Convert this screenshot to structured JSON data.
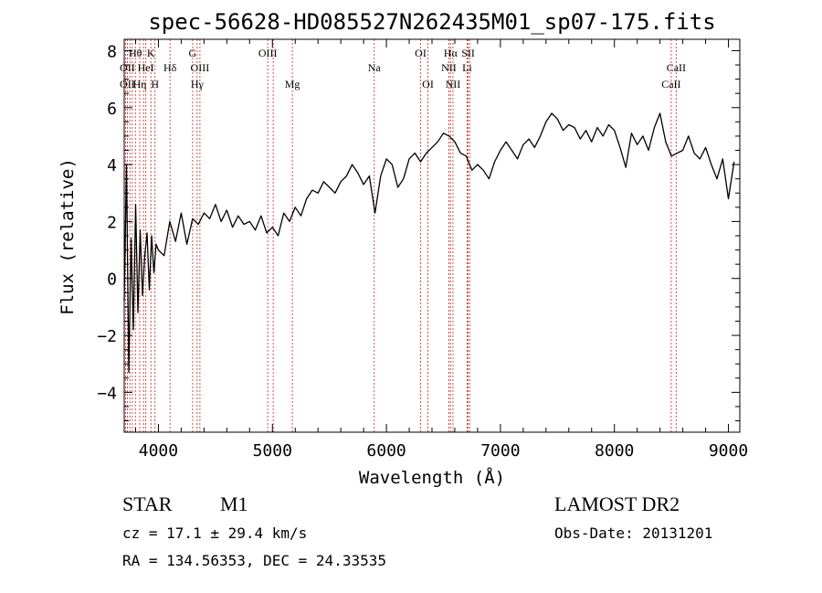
{
  "chart_data": {
    "type": "line",
    "title": "spec-56628-HD085527N262435M01_sp07-175.fits",
    "xlabel": "Wavelength (Å)",
    "ylabel": "Flux (relative)",
    "xlim": [
      3700,
      9100
    ],
    "ylim": [
      -5.4,
      8.4
    ],
    "x_ticks": [
      4000,
      5000,
      6000,
      7000,
      8000,
      9000
    ],
    "x_tick_labels": [
      "4000",
      "5000",
      "6000",
      "7000",
      "8000",
      "9000"
    ],
    "y_ticks": [
      -4,
      -2,
      0,
      2,
      4,
      6,
      8
    ],
    "y_tick_labels": [
      "−4",
      "−2",
      "0",
      "2",
      "4",
      "6",
      "8"
    ],
    "grid": false,
    "series": [
      {
        "line_color": "#000000",
        "x": [
          3700,
          3720,
          3740,
          3760,
          3780,
          3800,
          3820,
          3840,
          3860,
          3880,
          3900,
          3920,
          3940,
          3960,
          3980,
          4000,
          4050,
          4100,
          4150,
          4200,
          4250,
          4300,
          4350,
          4400,
          4450,
          4500,
          4550,
          4600,
          4650,
          4700,
          4750,
          4800,
          4850,
          4900,
          4950,
          5000,
          5050,
          5100,
          5150,
          5200,
          5250,
          5300,
          5350,
          5400,
          5450,
          5500,
          5550,
          5600,
          5650,
          5700,
          5750,
          5800,
          5850,
          5900,
          5950,
          6000,
          6050,
          6100,
          6150,
          6200,
          6250,
          6300,
          6350,
          6400,
          6450,
          6500,
          6550,
          6600,
          6650,
          6700,
          6750,
          6800,
          6850,
          6900,
          6950,
          7000,
          7050,
          7100,
          7150,
          7200,
          7250,
          7300,
          7350,
          7400,
          7450,
          7500,
          7550,
          7600,
          7650,
          7700,
          7750,
          7800,
          7850,
          7900,
          7950,
          8000,
          8050,
          8100,
          8150,
          8200,
          8250,
          8300,
          8350,
          8400,
          8450,
          8500,
          8550,
          8600,
          8650,
          8700,
          8750,
          8800,
          8850,
          8900,
          8950,
          9000,
          9050
        ],
        "y": [
          -0.8,
          4.0,
          -3.3,
          1.4,
          -1.8,
          2.6,
          -1.2,
          1.7,
          -0.6,
          0.8,
          1.6,
          -0.4,
          1.5,
          0.2,
          1.2,
          1.0,
          0.8,
          2.0,
          1.3,
          2.3,
          1.2,
          2.1,
          1.9,
          2.3,
          2.1,
          2.6,
          2.0,
          2.4,
          1.8,
          2.2,
          1.9,
          2.0,
          1.7,
          2.2,
          1.6,
          1.8,
          1.5,
          2.3,
          2.0,
          2.5,
          2.2,
          2.8,
          3.1,
          3.0,
          3.4,
          3.2,
          3.0,
          3.4,
          3.6,
          4.0,
          3.7,
          3.3,
          3.6,
          2.3,
          3.6,
          4.2,
          4.0,
          3.2,
          3.5,
          4.2,
          4.4,
          4.1,
          4.4,
          4.6,
          4.8,
          5.1,
          5.0,
          4.8,
          4.4,
          4.3,
          3.8,
          4.0,
          3.8,
          3.5,
          4.1,
          4.5,
          4.8,
          4.5,
          4.2,
          4.7,
          4.9,
          4.6,
          5.0,
          5.5,
          5.8,
          5.6,
          5.2,
          5.4,
          5.3,
          4.9,
          5.2,
          4.8,
          5.3,
          5.0,
          5.4,
          5.2,
          4.6,
          3.9,
          5.1,
          4.7,
          5.0,
          4.5,
          5.3,
          5.8,
          4.8,
          4.3,
          4.4,
          4.5,
          5.0,
          4.4,
          4.2,
          4.6,
          4.0,
          3.5,
          4.2,
          2.8,
          4.1
        ]
      }
    ],
    "reference_lines": {
      "color": "#cc3b3b",
      "x": [
        3712,
        3728,
        3750,
        3771,
        3798,
        3836,
        3869,
        3889,
        3934,
        3970,
        4102,
        4300,
        4340,
        4364,
        4959,
        5007,
        5175,
        5893,
        6300,
        6364,
        6548,
        6563,
        6584,
        6708,
        6717,
        6731,
        8498,
        8542
      ]
    },
    "line_annotations": [
      {
        "label": "Hθ",
        "x": 3798,
        "row": 1
      },
      {
        "label": "K",
        "x": 3934,
        "row": 1
      },
      {
        "label": "G",
        "x": 4300,
        "row": 1
      },
      {
        "label": "OIII",
        "x": 4959,
        "row": 1
      },
      {
        "label": "OI",
        "x": 6300,
        "row": 1
      },
      {
        "label": "Hα",
        "x": 6563,
        "row": 1
      },
      {
        "label": "SII",
        "x": 6717,
        "row": 1
      },
      {
        "label": "OII",
        "x": 3727,
        "row": 2
      },
      {
        "label": "HeI",
        "x": 3889,
        "row": 2
      },
      {
        "label": "Hδ",
        "x": 4102,
        "row": 2
      },
      {
        "label": "OIII",
        "x": 4364,
        "row": 2
      },
      {
        "label": "Na",
        "x": 5893,
        "row": 2
      },
      {
        "label": "NII",
        "x": 6548,
        "row": 2
      },
      {
        "label": "Li",
        "x": 6708,
        "row": 2
      },
      {
        "label": "CaII",
        "x": 8542,
        "row": 2
      },
      {
        "label": "OII",
        "x": 3727,
        "row": 3
      },
      {
        "label": "Hη",
        "x": 3836,
        "row": 3
      },
      {
        "label": "H",
        "x": 3970,
        "row": 3
      },
      {
        "label": "Hγ",
        "x": 4340,
        "row": 3
      },
      {
        "label": "Mg",
        "x": 5175,
        "row": 3
      },
      {
        "label": "OI",
        "x": 6364,
        "row": 3
      },
      {
        "label": "NII",
        "x": 6584,
        "row": 3
      },
      {
        "label": "CaII",
        "x": 8498,
        "row": 3
      }
    ]
  },
  "info": {
    "object_class": "STAR",
    "subclass": "M1",
    "survey": "LAMOST DR2",
    "redshift": "cz = 17.1 ± 29.4 km/s",
    "obs_date": "Obs-Date: 20131201",
    "coordinates": "RA = 134.56353, DEC =  24.33535"
  }
}
